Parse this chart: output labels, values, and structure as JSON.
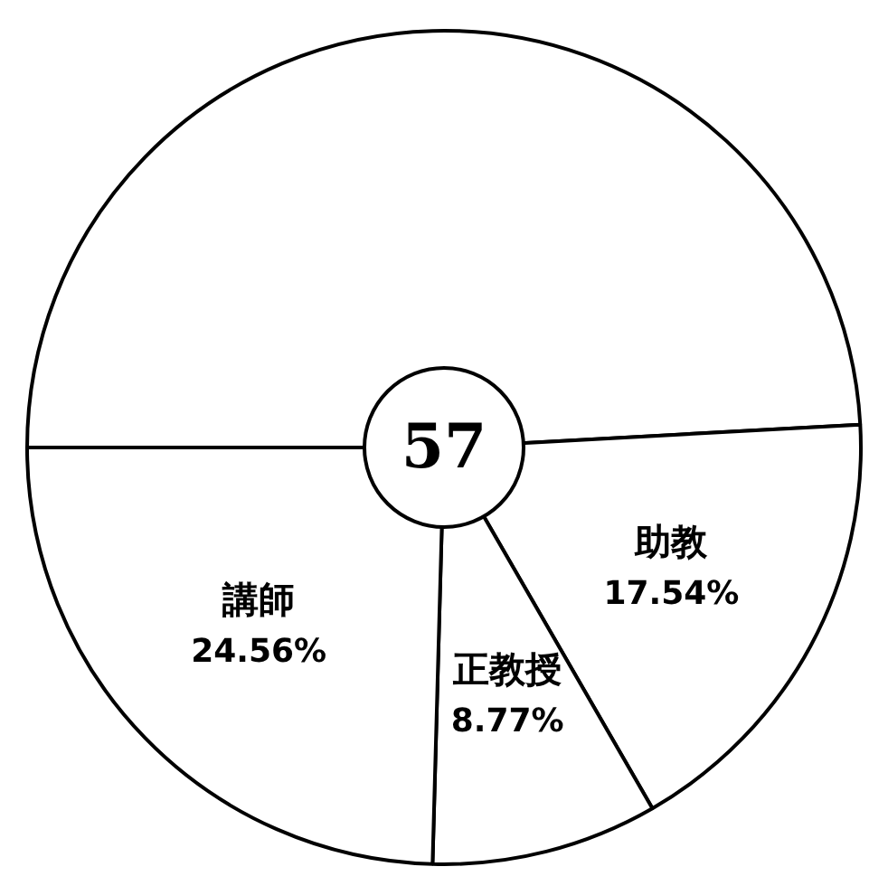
{
  "chart_data": {
    "type": "pie",
    "categories": [
      null,
      "助教",
      "正教授",
      "講師"
    ],
    "values": [
      49.12,
      17.54,
      8.77,
      24.56
    ],
    "value_labels": [
      null,
      "17.54%",
      "8.77%",
      "24.56%"
    ],
    "colors": [
      "#ffffff",
      "#ffffff",
      "#ffffff",
      "#ffffff"
    ],
    "annotations": [
      "57"
    ],
    "legend": false
  }
}
